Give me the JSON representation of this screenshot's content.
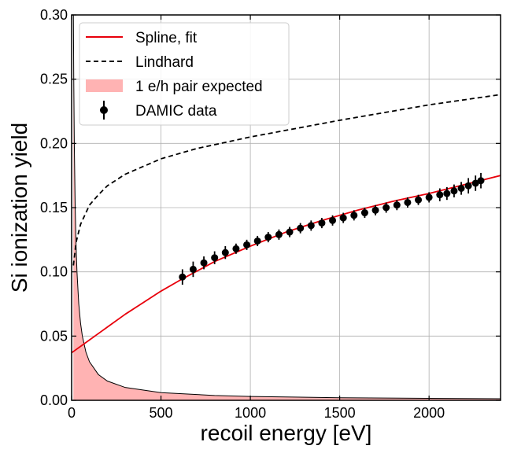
{
  "chart_data": {
    "type": "line",
    "xlabel": "recoil energy [eV]",
    "ylabel": "Si ionization yield",
    "xlim": [
      0,
      2400
    ],
    "ylim": [
      0,
      0.3
    ],
    "xticks": [
      0,
      500,
      1000,
      1500,
      2000
    ],
    "xtick_labels": [
      "0",
      "500",
      "1000",
      "1500",
      "2000"
    ],
    "yticks": [
      0,
      0.05,
      0.1,
      0.15,
      0.2,
      0.25,
      0.3
    ],
    "ytick_labels": [
      "0.00",
      "0.05",
      "0.10",
      "0.15",
      "0.20",
      "0.25",
      "0.30"
    ],
    "grid": true,
    "legend_position": "top-left",
    "series": [
      {
        "name": "Spline, fit",
        "kind": "line",
        "color": "#e8000b",
        "dash": "solid",
        "x": [
          0,
          100,
          200,
          300,
          400,
          500,
          600,
          800,
          1000,
          1200,
          1400,
          1600,
          1800,
          2000,
          2200,
          2400
        ],
        "y": [
          0.037,
          0.047,
          0.057,
          0.067,
          0.076,
          0.085,
          0.093,
          0.108,
          0.12,
          0.131,
          0.14,
          0.148,
          0.155,
          0.161,
          0.168,
          0.175
        ]
      },
      {
        "name": "Lindhard",
        "kind": "line",
        "color": "#000000",
        "dash": "dashed",
        "x": [
          10,
          25,
          50,
          100,
          150,
          200,
          300,
          400,
          500,
          700,
          1000,
          1500,
          2000,
          2400
        ],
        "y": [
          0.105,
          0.123,
          0.137,
          0.152,
          0.16,
          0.167,
          0.176,
          0.182,
          0.188,
          0.196,
          0.205,
          0.218,
          0.23,
          0.238
        ]
      },
      {
        "name": "1 e/h pair expected",
        "kind": "area",
        "color": "#ffb3b3",
        "x": [
          10,
          12,
          15,
          20,
          25,
          30,
          40,
          50,
          60,
          80,
          100,
          150,
          200,
          300,
          500,
          800,
          1000,
          1500,
          2000,
          2400
        ],
        "y": [
          0.3,
          0.25,
          0.2,
          0.15,
          0.12,
          0.1,
          0.075,
          0.06,
          0.05,
          0.0375,
          0.03,
          0.02,
          0.015,
          0.01,
          0.006,
          0.00375,
          0.003,
          0.002,
          0.0015,
          0.00125
        ]
      },
      {
        "name": "DAMIC data",
        "kind": "errorbar",
        "color": "#000000",
        "x": [
          620,
          680,
          740,
          800,
          860,
          920,
          980,
          1040,
          1100,
          1160,
          1220,
          1280,
          1340,
          1400,
          1460,
          1520,
          1580,
          1640,
          1700,
          1760,
          1820,
          1880,
          1940,
          2000,
          2060,
          2100,
          2140,
          2180,
          2220,
          2260,
          2290
        ],
        "y": [
          0.096,
          0.102,
          0.107,
          0.111,
          0.115,
          0.118,
          0.121,
          0.124,
          0.127,
          0.129,
          0.131,
          0.134,
          0.136,
          0.138,
          0.14,
          0.142,
          0.144,
          0.146,
          0.148,
          0.15,
          0.152,
          0.154,
          0.156,
          0.158,
          0.16,
          0.161,
          0.163,
          0.165,
          0.167,
          0.169,
          0.171
        ],
        "yerr": [
          0.006,
          0.006,
          0.005,
          0.005,
          0.005,
          0.004,
          0.004,
          0.004,
          0.004,
          0.004,
          0.004,
          0.004,
          0.004,
          0.004,
          0.004,
          0.004,
          0.004,
          0.004,
          0.004,
          0.004,
          0.004,
          0.004,
          0.004,
          0.004,
          0.005,
          0.005,
          0.005,
          0.005,
          0.006,
          0.006,
          0.006
        ]
      }
    ]
  }
}
